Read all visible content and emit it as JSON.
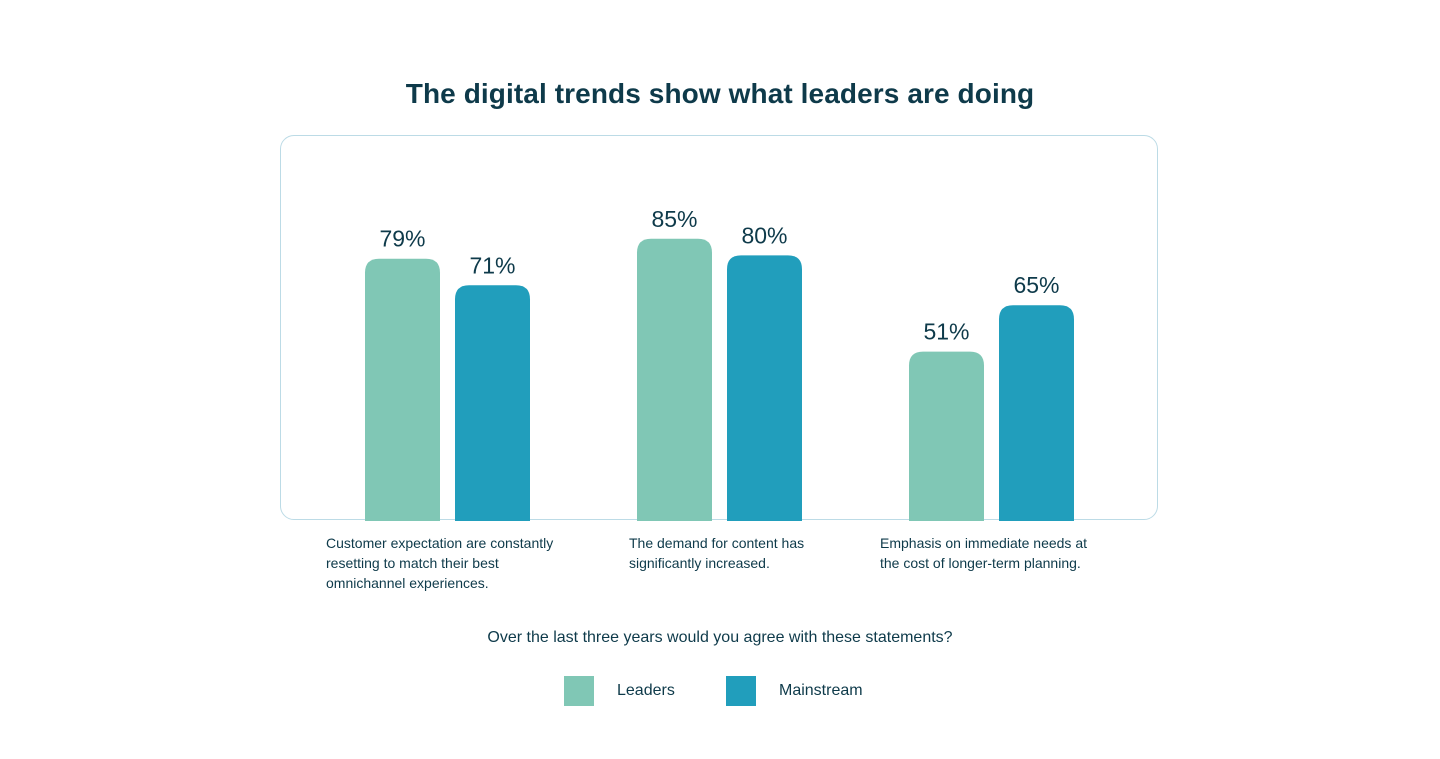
{
  "chart_data": {
    "type": "bar",
    "title": "The digital trends show what leaders are doing",
    "categories": [
      "Customer expectation are constantly resetting to match their best omnichannel experiences.",
      "The demand for content has significantly increased.",
      "Emphasis on immediate needs at the cost of longer-term planning."
    ],
    "series": [
      {
        "name": "Leaders",
        "values": [
          79,
          85,
          51
        ],
        "color": "#80c7b5"
      },
      {
        "name": "Mainstream",
        "values": [
          71,
          80,
          65
        ],
        "color": "#219ebc"
      }
    ],
    "value_suffix": "%",
    "xlabel": "Over the last three years would you agree with these statements?",
    "ylabel": "",
    "ylim": [
      0,
      100
    ],
    "grid": false,
    "legend_position": "bottom-center",
    "data_labels": true
  }
}
